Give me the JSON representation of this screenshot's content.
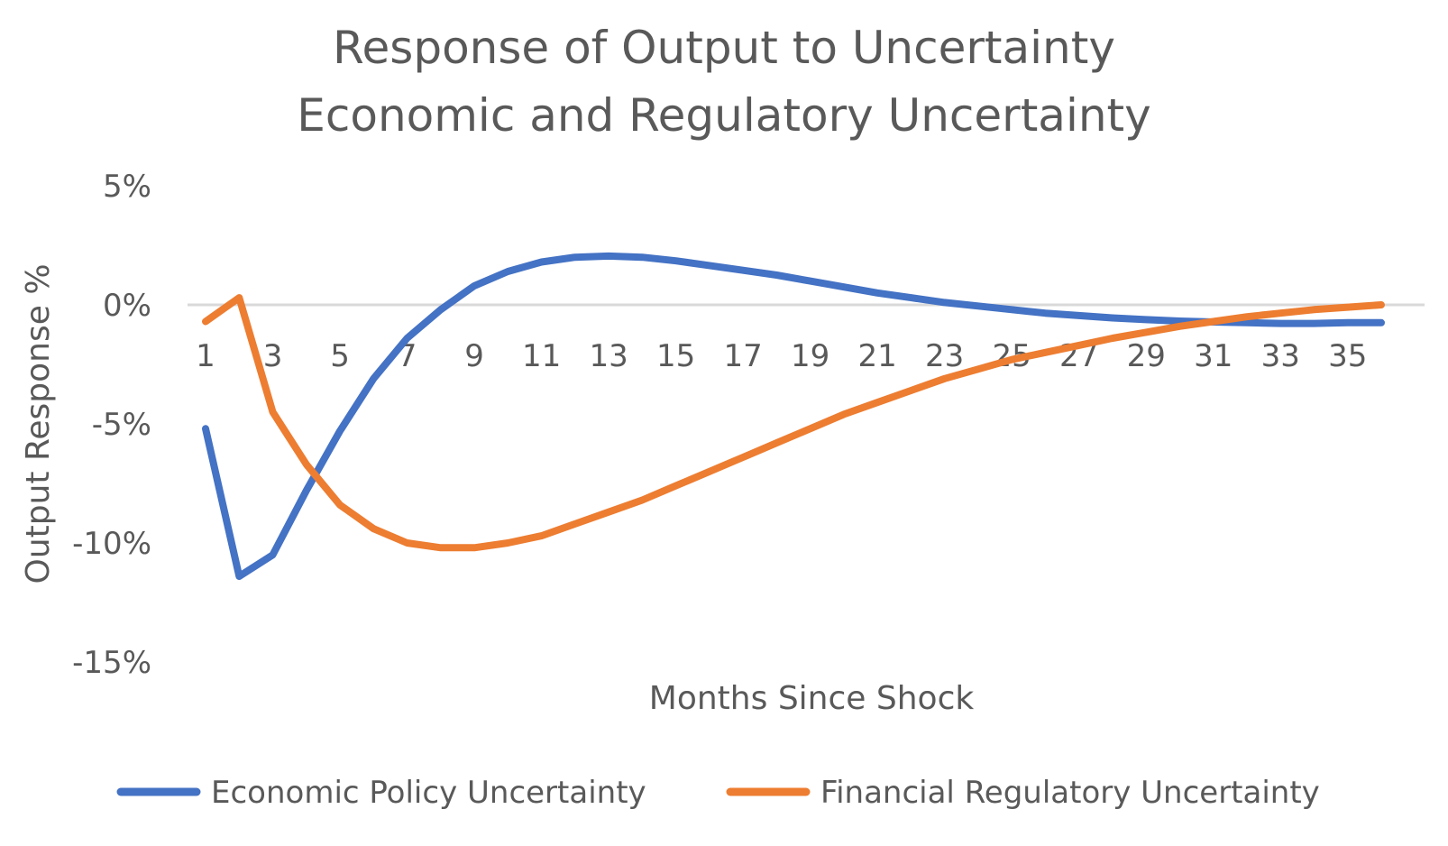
{
  "chart_data": {
    "type": "line",
    "title": "Response of Output to Uncertainty",
    "subtitle": "Economic and Regulatory Uncertainty",
    "xlabel": "Months Since Shock",
    "ylabel": "Output Response %",
    "y_ticks": [
      "5%",
      "0%",
      "-5%",
      "-10%",
      "-15%"
    ],
    "ylim": [
      -15,
      5
    ],
    "x": [
      1,
      2,
      3,
      4,
      5,
      6,
      7,
      8,
      9,
      10,
      11,
      12,
      13,
      14,
      15,
      16,
      17,
      18,
      19,
      20,
      21,
      22,
      23,
      24,
      25,
      26,
      27,
      28,
      29,
      30,
      31,
      32,
      33,
      34,
      35,
      36
    ],
    "x_tick_labels": [
      "1",
      "3",
      "5",
      "7",
      "9",
      "11",
      "13",
      "15",
      "17",
      "19",
      "21",
      "23",
      "25",
      "27",
      "29",
      "31",
      "33",
      "35"
    ],
    "grid": false,
    "legend_position": "bottom",
    "series": [
      {
        "name": "Economic Policy Uncertainty",
        "color": "#4472C4",
        "values": [
          -5.2,
          -11.4,
          -10.5,
          -7.8,
          -5.3,
          -3.1,
          -1.4,
          -0.2,
          0.8,
          1.4,
          1.8,
          2.0,
          2.05,
          2.0,
          1.85,
          1.65,
          1.45,
          1.25,
          1.0,
          0.75,
          0.5,
          0.3,
          0.1,
          -0.05,
          -0.2,
          -0.35,
          -0.45,
          -0.55,
          -0.62,
          -0.68,
          -0.72,
          -0.75,
          -0.78,
          -0.78,
          -0.75,
          -0.75
        ]
      },
      {
        "name": "Financial Regulatory Uncertainty",
        "color": "#ED7D31",
        "values": [
          -0.7,
          0.3,
          -4.5,
          -6.7,
          -8.4,
          -9.4,
          -10.0,
          -10.2,
          -10.2,
          -10.0,
          -9.7,
          -9.2,
          -8.7,
          -8.2,
          -7.6,
          -7.0,
          -6.4,
          -5.8,
          -5.2,
          -4.6,
          -4.1,
          -3.6,
          -3.1,
          -2.7,
          -2.3,
          -2.0,
          -1.7,
          -1.4,
          -1.15,
          -0.9,
          -0.7,
          -0.5,
          -0.35,
          -0.2,
          -0.1,
          0.0
        ]
      }
    ]
  }
}
